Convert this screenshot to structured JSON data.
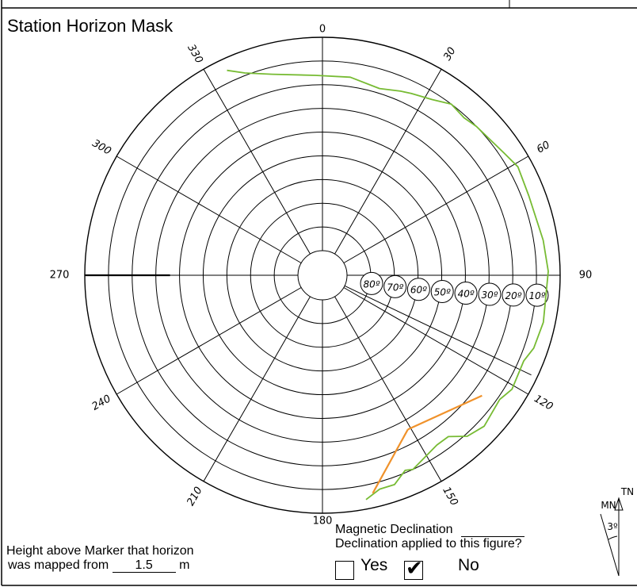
{
  "title": "Station Horizon Mask",
  "azimuth_labels": [
    "0",
    "30",
    "60",
    "90",
    "120",
    "150",
    "180",
    "210",
    "240",
    "270",
    "300",
    "330"
  ],
  "elevation_labels": [
    "80º",
    "70º",
    "60º",
    "50º",
    "40º",
    "30º",
    "20º",
    "10º"
  ],
  "horizon_mask_azimuth_elevation": [
    [
      335,
      5
    ],
    [
      339,
      9
    ],
    [
      346,
      13
    ],
    [
      358,
      16
    ],
    [
      8,
      16
    ],
    [
      17,
      18
    ],
    [
      23,
      16
    ],
    [
      26,
      15
    ],
    [
      32,
      13
    ],
    [
      37,
      10
    ],
    [
      42,
      11
    ],
    [
      46,
      10
    ],
    [
      56,
      8
    ],
    [
      61,
      6
    ],
    [
      69,
      7
    ],
    [
      81,
      6
    ],
    [
      89,
      5
    ],
    [
      102,
      5
    ],
    [
      109,
      6
    ],
    [
      113,
      8
    ],
    [
      121,
      7
    ],
    [
      125,
      9
    ],
    [
      133,
      7
    ],
    [
      138,
      9
    ],
    [
      142,
      14
    ],
    [
      146,
      14
    ],
    [
      155,
      10
    ],
    [
      157,
      11
    ],
    [
      161,
      7
    ],
    [
      165,
      7
    ],
    [
      169,
      4
    ]
  ],
  "obstruction_outline": {
    "lines": [
      [
        [
          151,
          26
        ],
        [
          167,
          6
        ]
      ],
      [
        [
          151,
          26
        ],
        [
          127,
          16
        ]
      ]
    ]
  },
  "magnetic_declination": {
    "label": "Magnetic Declination",
    "value": ""
  },
  "declination_applied": {
    "question": "Declination applied to this figure?",
    "yes_label": "Yes",
    "no_label": "No",
    "yes_checked": false,
    "no_checked": true,
    "check_glyph": "✔"
  },
  "height_above_marker": {
    "line1": "Height above Marker that horizon",
    "line2_prefix": "was mapped from",
    "value": "1.5",
    "unit": "m"
  },
  "north_arrow": {
    "true_north_label": "TN",
    "magnetic_north_label": "MN",
    "declination_label": "3º"
  },
  "colors": {
    "horizon_mask": "#77bb33",
    "obstruction": "#f0922b",
    "grid": "#000000"
  }
}
